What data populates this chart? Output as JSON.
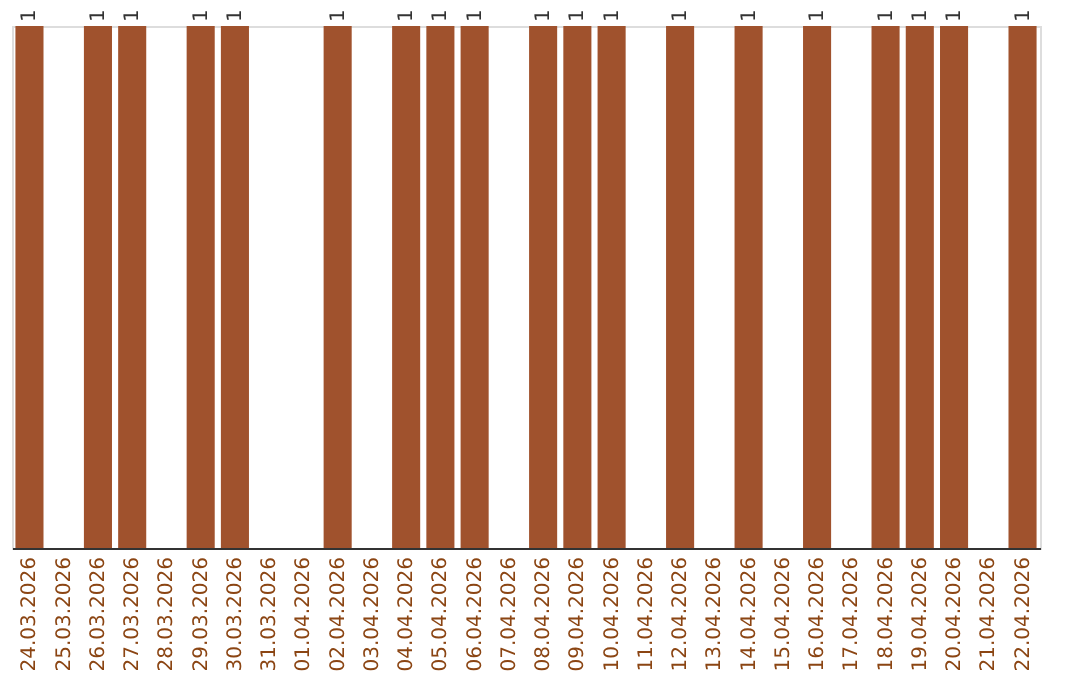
{
  "chart_data": {
    "type": "bar",
    "categories": [
      "24.03.2026",
      "25.03.2026",
      "26.03.2026",
      "27.03.2026",
      "28.03.2026",
      "29.03.2026",
      "30.03.2026",
      "31.03.2026",
      "01.04.2026",
      "02.04.2026",
      "03.04.2026",
      "04.04.2026",
      "05.04.2026",
      "06.04.2026",
      "07.04.2026",
      "08.04.2026",
      "09.04.2026",
      "10.04.2026",
      "11.04.2026",
      "12.04.2026",
      "13.04.2026",
      "14.04.2026",
      "15.04.2026",
      "16.04.2026",
      "17.04.2026",
      "18.04.2026",
      "19.04.2026",
      "20.04.2026",
      "21.04.2026",
      "22.04.2026"
    ],
    "values": [
      1,
      null,
      1,
      1,
      null,
      1,
      1,
      null,
      null,
      1,
      null,
      1,
      1,
      1,
      null,
      1,
      1,
      1,
      null,
      1,
      null,
      1,
      null,
      1,
      null,
      1,
      1,
      1,
      null,
      1
    ],
    "color": "#a0522d",
    "data_labels": true,
    "grid": false,
    "tick_labels": "x"
  }
}
